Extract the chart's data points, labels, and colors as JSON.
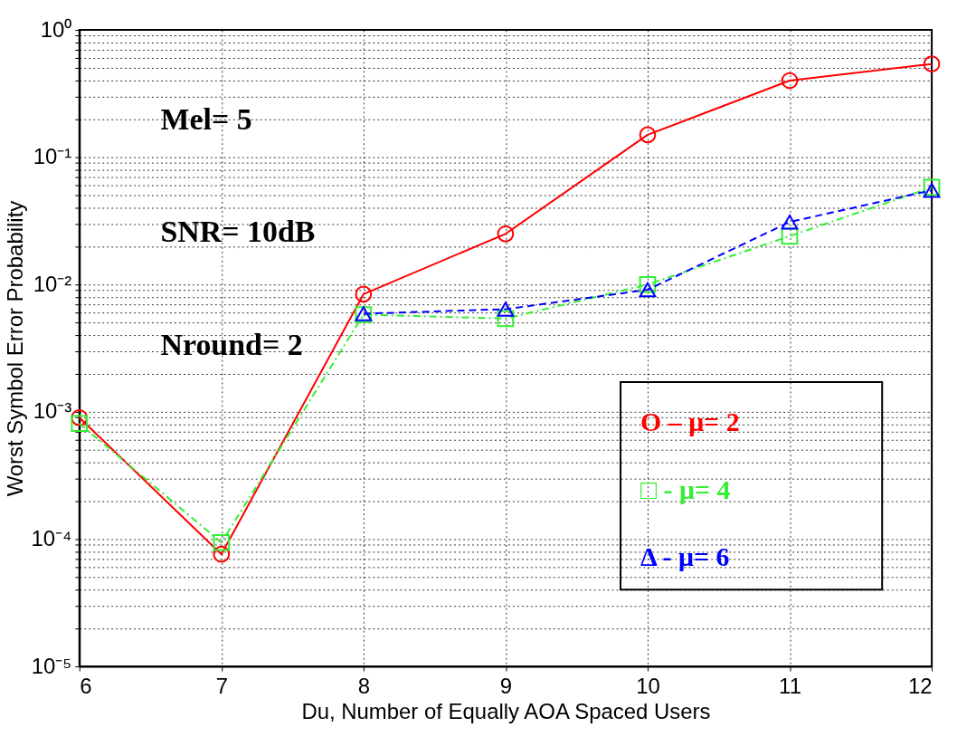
{
  "chart_data": {
    "type": "line",
    "xlabel": "Du, Number of Equally AOA Spaced Users",
    "ylabel": "Worst Symbol Error Probability",
    "x": [
      6,
      7,
      8,
      9,
      10,
      11,
      12
    ],
    "xlim": [
      6,
      12
    ],
    "xticks": [
      6,
      7,
      8,
      9,
      10,
      11,
      12
    ],
    "ylim": [
      1e-05,
      1
    ],
    "log": "y",
    "yticks": [
      {
        "value": 1e-05,
        "label": "10⁻⁵"
      },
      {
        "value": 2e-05,
        "label": null
      },
      {
        "value": 3e-05,
        "label": null
      },
      {
        "value": 4e-05,
        "label": null
      },
      {
        "value": 5e-05,
        "label": null
      },
      {
        "value": 6e-05,
        "label": null
      },
      {
        "value": 7e-05,
        "label": null
      },
      {
        "value": 8e-05,
        "label": null
      },
      {
        "value": 9e-05,
        "label": null
      },
      {
        "value": 0.0001,
        "label": "10⁻⁴"
      },
      {
        "value": 0.0002,
        "label": null
      },
      {
        "value": 0.0003,
        "label": null
      },
      {
        "value": 0.0004,
        "label": null
      },
      {
        "value": 0.0005,
        "label": null
      },
      {
        "value": 0.0006,
        "label": null
      },
      {
        "value": 0.0007,
        "label": null
      },
      {
        "value": 0.0008,
        "label": null
      },
      {
        "value": 0.0009,
        "label": null
      },
      {
        "value": 0.001,
        "label": "10⁻³"
      },
      {
        "value": 0.002,
        "label": null
      },
      {
        "value": 0.003,
        "label": null
      },
      {
        "value": 0.004,
        "label": null
      },
      {
        "value": 0.005,
        "label": null
      },
      {
        "value": 0.006,
        "label": null
      },
      {
        "value": 0.007,
        "label": null
      },
      {
        "value": 0.008,
        "label": null
      },
      {
        "value": 0.009,
        "label": null
      },
      {
        "value": 0.01,
        "label": "10⁻²"
      },
      {
        "value": 0.02,
        "label": null
      },
      {
        "value": 0.03,
        "label": null
      },
      {
        "value": 0.04,
        "label": null
      },
      {
        "value": 0.05,
        "label": null
      },
      {
        "value": 0.06,
        "label": null
      },
      {
        "value": 0.07,
        "label": null
      },
      {
        "value": 0.08,
        "label": null
      },
      {
        "value": 0.09,
        "label": null
      },
      {
        "value": 0.1,
        "label": "10⁻¹"
      },
      {
        "value": 0.2,
        "label": null
      },
      {
        "value": 0.3,
        "label": null
      },
      {
        "value": 0.4,
        "label": null
      },
      {
        "value": 0.5,
        "label": null
      },
      {
        "value": 0.6,
        "label": null
      },
      {
        "value": 0.7,
        "label": null
      },
      {
        "value": 0.8,
        "label": null
      },
      {
        "value": 0.9,
        "label": null
      },
      {
        "value": 1,
        "label": "10⁰"
      }
    ],
    "grid": true,
    "legend": "bottom right",
    "annotations": [
      "Mel= 5",
      "SNR= 10dB",
      "Nround= 2"
    ],
    "series": [
      {
        "name": "O – μ= 2",
        "color": "#ff0000",
        "marker": "circle",
        "line_style": "solid",
        "values": [
          0.0009,
          7.6e-05,
          0.0084,
          0.025,
          0.15,
          0.4,
          0.54
        ]
      },
      {
        "name": "□ - μ= 4",
        "color": "#33ee33",
        "marker": "square",
        "line_style": "dashdot",
        "values": [
          0.00081,
          9.4e-05,
          0.0058,
          0.0054,
          0.01,
          0.024,
          0.058
        ]
      },
      {
        "name": "Δ - μ= 6",
        "color": "#0000ff",
        "marker": "triangle",
        "line_style": "dashed",
        "values": [
          null,
          null,
          0.0059,
          0.0064,
          0.0091,
          0.031,
          0.055
        ]
      }
    ]
  }
}
